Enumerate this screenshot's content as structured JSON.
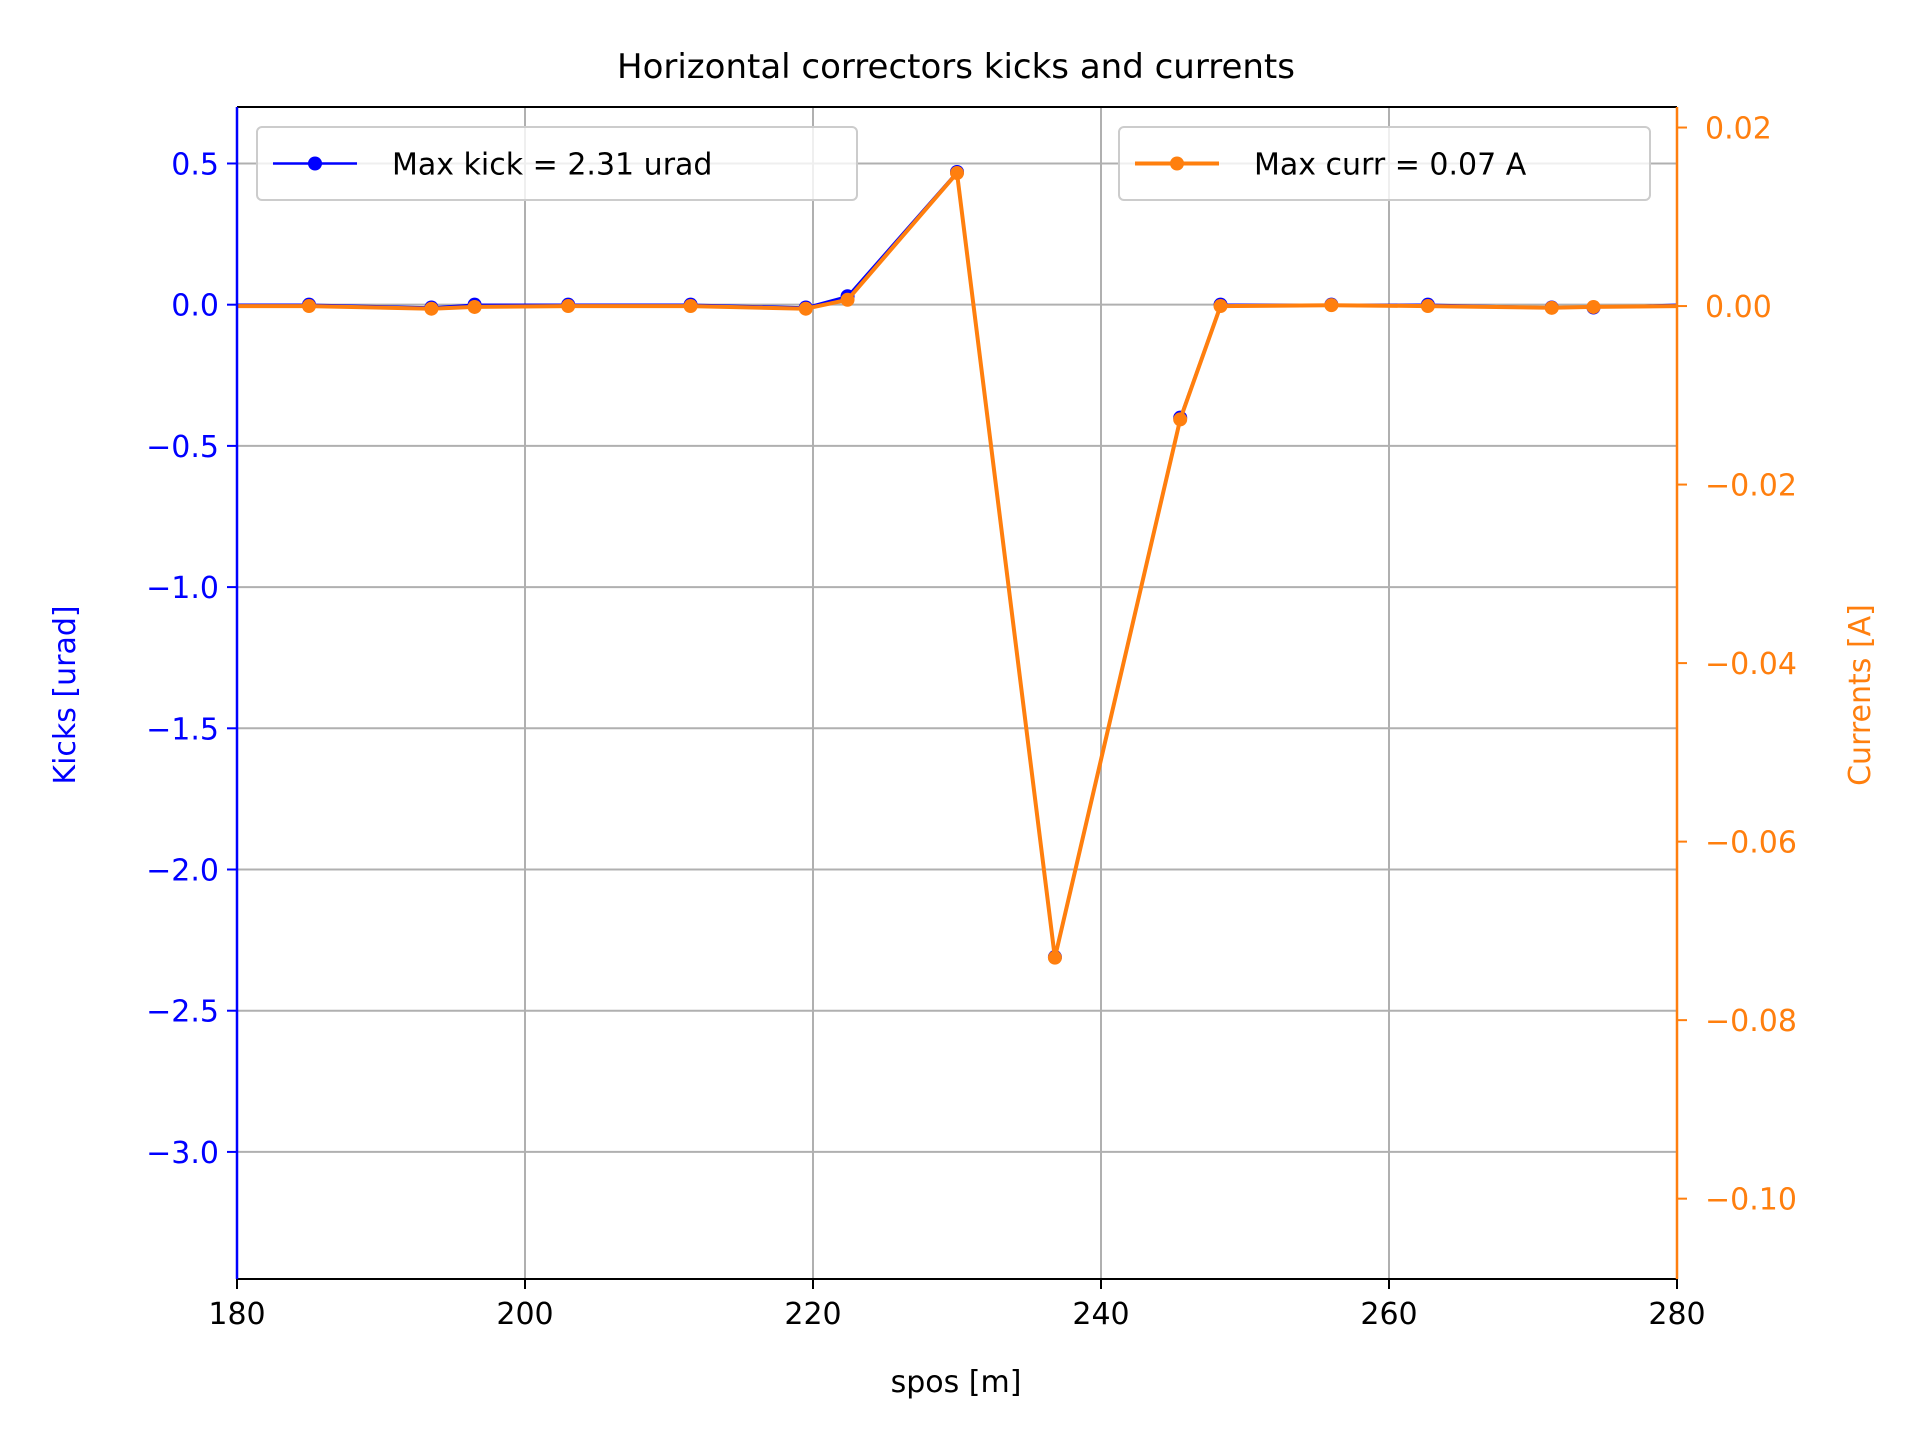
{
  "chart_data": {
    "type": "line",
    "title": "Horizontal correctors kicks and currents",
    "xlabel": "spos [m]",
    "xlim": [
      180,
      280
    ],
    "x_ticks": [
      180,
      200,
      220,
      240,
      260,
      280
    ],
    "x_tick_labels": [
      "180",
      "200",
      "220",
      "240",
      "260",
      "280"
    ],
    "grid": true,
    "left_axis": {
      "label": "Kicks [urad]",
      "color": "#0000ff",
      "ylim": [
        -3.45,
        0.7
      ],
      "ticks": [
        0.5,
        0.0,
        -0.5,
        -1.0,
        -1.5,
        -2.0,
        -2.5,
        -3.0
      ],
      "tick_labels": [
        "0.5",
        "0.0",
        "−0.5",
        "−1.0",
        "−1.5",
        "−2.0",
        "−2.5",
        "−3.0"
      ]
    },
    "right_axis": {
      "label": "Currents [A]",
      "color": "#ff7f0e",
      "ylim": [
        -0.109,
        0.0223
      ],
      "ticks": [
        0.02,
        0.0,
        -0.02,
        -0.04,
        -0.06,
        -0.08,
        -0.1
      ],
      "tick_labels": [
        "0.02",
        "0.00",
        "−0.02",
        "−0.04",
        "−0.06",
        "−0.08",
        "−0.10"
      ]
    },
    "series": [
      {
        "name": "Max kick = 2.31 urad",
        "axis": "left",
        "color": "#0000ff",
        "legend_position": "upper left",
        "x": [
          180,
          185,
          193.5,
          196.5,
          203,
          211.5,
          219.5,
          222.4,
          230,
          236.8,
          245.5,
          248.3,
          256,
          262.7,
          271.3,
          274.2,
          280
        ],
        "y": [
          0.0,
          0.0,
          -0.01,
          0.0,
          0.0,
          0.0,
          -0.01,
          0.03,
          0.47,
          -2.31,
          -0.4,
          0.0,
          0.0,
          0.0,
          -0.01,
          -0.01,
          0.0
        ]
      },
      {
        "name": "Max curr = 0.07 A",
        "axis": "right",
        "color": "#ff7f0e",
        "legend_position": "upper right",
        "x": [
          180,
          185,
          193.5,
          196.5,
          203,
          211.5,
          219.5,
          222.4,
          230,
          236.8,
          245.5,
          248.3,
          256,
          262.7,
          271.3,
          274.2,
          280
        ],
        "y": [
          0.0,
          0.0,
          -0.0003,
          -0.0001,
          0.0,
          0.0,
          -0.0003,
          0.0007,
          0.0149,
          -0.073,
          -0.0127,
          0.0,
          0.0001,
          0.0,
          -0.0002,
          -0.0001,
          0.0
        ]
      }
    ]
  }
}
